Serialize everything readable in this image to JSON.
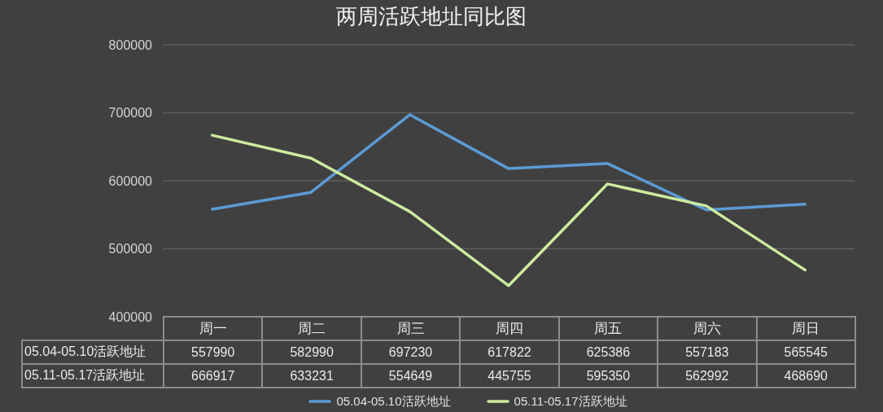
{
  "chart_data": {
    "type": "line",
    "title": "两周活跃地址同比图",
    "categories": [
      "周一",
      "周二",
      "周三",
      "周四",
      "周五",
      "周六",
      "周日"
    ],
    "series": [
      {
        "name": "05.04-05.10活跃地址",
        "color": "#5b9bd5",
        "values": [
          557990,
          582990,
          697230,
          617822,
          625386,
          557183,
          565545
        ]
      },
      {
        "name": "05.11-05.17活跃地址",
        "color": "#cdeb9f",
        "values": [
          666917,
          633231,
          554649,
          445755,
          595350,
          562992,
          468690
        ]
      }
    ],
    "ylim": [
      400000,
      800000
    ],
    "yticks": [
      400000,
      500000,
      600000,
      700000,
      800000
    ],
    "grid": "y",
    "legend": "bottom",
    "data_labels": true,
    "marker": "none"
  }
}
